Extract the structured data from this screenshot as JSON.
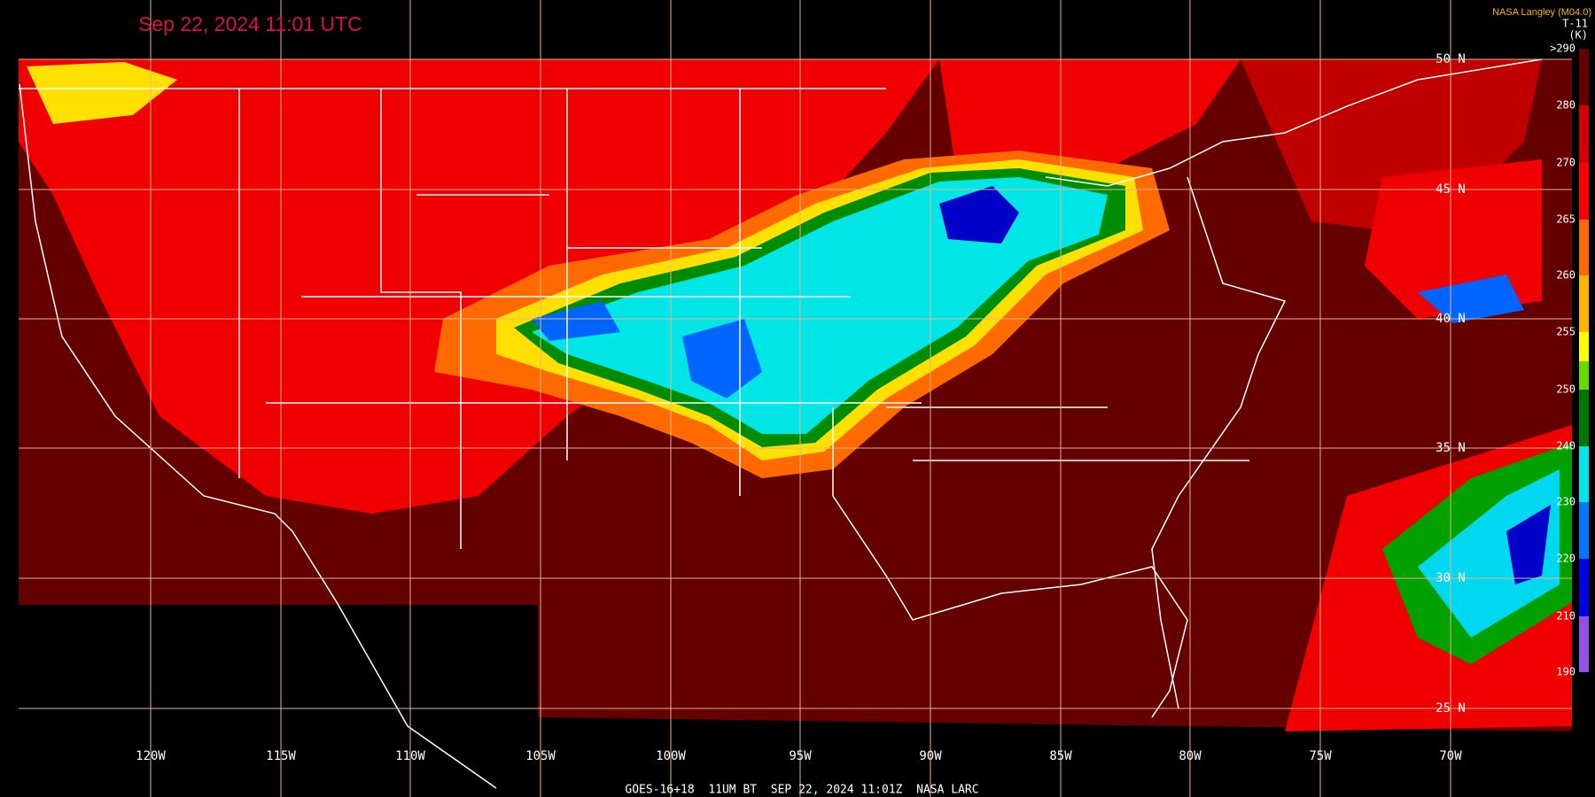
{
  "header": {
    "title": "Sep 22, 2024 11:01 UTC",
    "credit": "NASA Langley (M04.0)",
    "product": "T-11",
    "unit": "(K)"
  },
  "colorbar": {
    "labels": [
      ">290",
      "280",
      "270",
      "265",
      "260",
      "255",
      "250",
      "240",
      "230",
      "220",
      "210",
      "190"
    ]
  },
  "longitudes": [
    "120W",
    "115W",
    "110W",
    "105W",
    "100W",
    "95W",
    "90W",
    "85W",
    "80W",
    "75W",
    "70W"
  ],
  "latitudes": [
    "50 N",
    "45 N",
    "40 N",
    "35 N",
    "30 N",
    "25 N"
  ],
  "footer": "GOES-16+18  11UM BT  SEP 22, 2024 11:01Z  NASA LARC"
}
